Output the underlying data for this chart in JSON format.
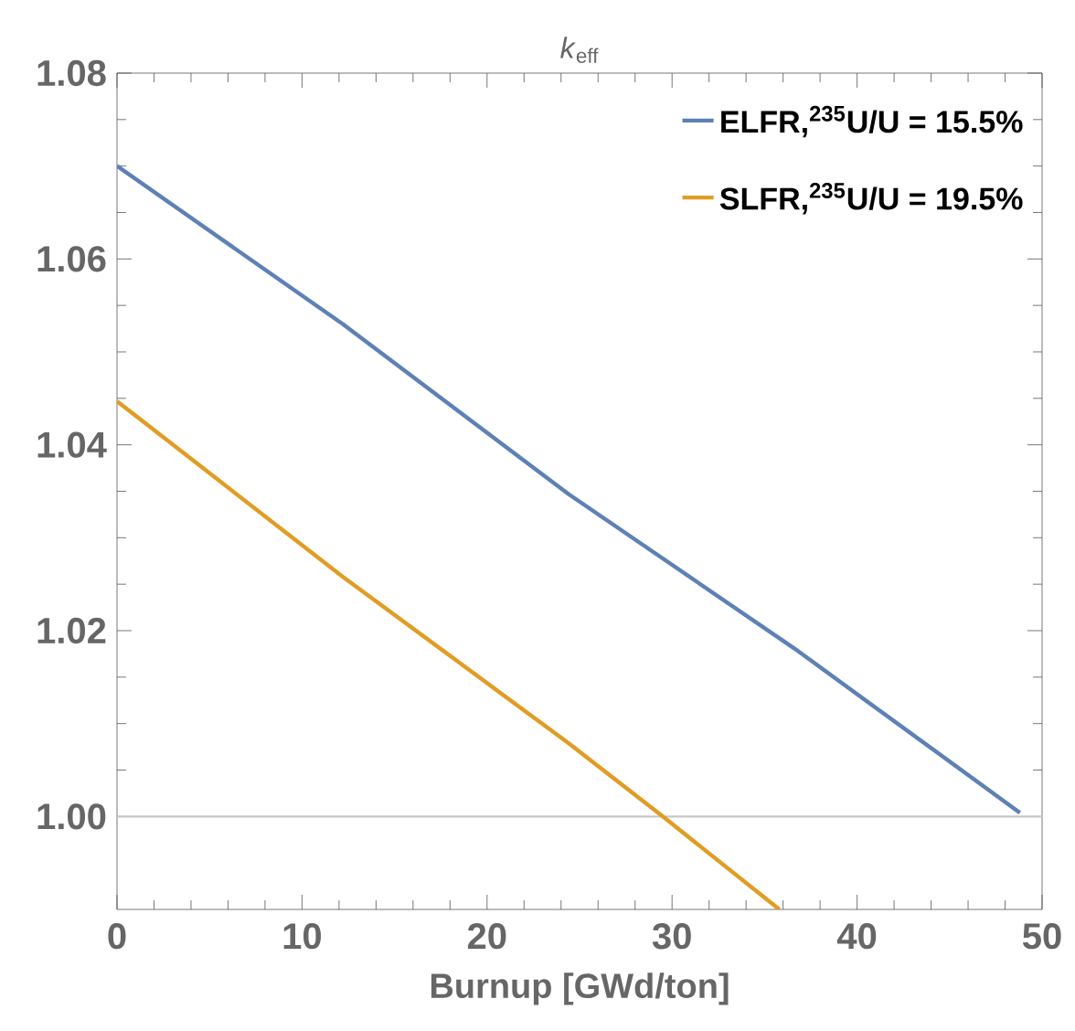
{
  "chart_data": {
    "type": "line",
    "title": "*k*$_{eff}$",
    "xlabel": "Burnup [GWd/ton]",
    "series": [
      {
        "name": "ELFR,$^{235}$U/U = 15.5%",
        "color": "#5e81b5",
        "x": [
          0,
          12.2,
          24.4,
          36.6,
          48.8
        ],
        "values": [
          1.07,
          1.053,
          1.0347,
          1.0181,
          1.0004
        ]
      },
      {
        "name": "SLFR,$^{235}$U/U = 19.5%",
        "color": "#e19c24",
        "x": [
          0,
          12.2,
          24.4,
          29.5,
          35.8
        ],
        "values": [
          1.0447,
          1.0258,
          1.0079,
          1.0,
          0.99
        ]
      }
    ],
    "xlim": [
      0,
      50
    ],
    "xticks": [
      0,
      10,
      20,
      30,
      40,
      50
    ],
    "ylim": [
      0.99,
      1.08
    ],
    "yticks": [
      {
        "value": 1.0,
        "label": "1.00"
      },
      1.02,
      1.04,
      1.06,
      1.08
    ],
    "ref_lines": [
      {
        "axis": "y",
        "value": 1.0,
        "color": "#c8c8c8"
      }
    ],
    "legend": "top right",
    "marker": "none",
    "line_style": "solid",
    "grid": false
  }
}
